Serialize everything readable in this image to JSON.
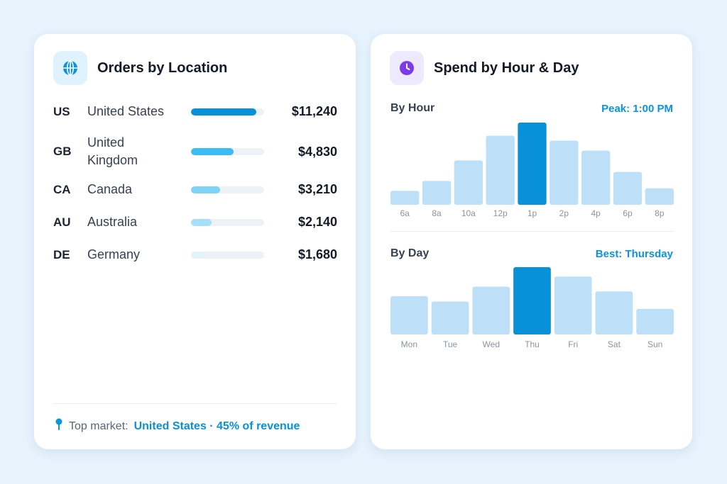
{
  "location_card": {
    "title": "Orders by Location",
    "icon": "globe-icon",
    "rows": [
      {
        "code": "US",
        "name": "United States",
        "amount": "$11,240",
        "share": 0.89,
        "color": "#0891d8"
      },
      {
        "code": "GB",
        "name": "United Kingdom",
        "amount": "$4,830",
        "share": 0.58,
        "color": "#3bbcf2"
      },
      {
        "code": "CA",
        "name": "Canada",
        "amount": "$3,210",
        "share": 0.4,
        "color": "#7dd3f5"
      },
      {
        "code": "AU",
        "name": "Australia",
        "amount": "$2,140",
        "share": 0.28,
        "color": "#a5dffa"
      },
      {
        "code": "DE",
        "name": "Germany",
        "amount": "$1,680",
        "share": 0.18,
        "color": "#e2f3fc"
      }
    ],
    "footer": {
      "label": "Top market:",
      "highlight": "United States · 45% of revenue",
      "icon": "map-pin-icon"
    }
  },
  "spend_card": {
    "title": "Spend by Hour & Day",
    "icon": "clock-icon",
    "by_hour": {
      "title": "By Hour",
      "note": "Peak: 1:00 PM"
    },
    "by_day": {
      "title": "By Day",
      "note": "Best: Thursday"
    }
  },
  "colors": {
    "accent": "#0891d8",
    "bar_light": "#bde0f8",
    "bar_peak": "#0891d8"
  },
  "chart_data": [
    {
      "type": "bar",
      "title": "By Hour",
      "categories": [
        "6a",
        "8a",
        "10a",
        "12p",
        "1p",
        "2p",
        "4p",
        "6p",
        "8p"
      ],
      "values": [
        17,
        29,
        54,
        84,
        100,
        78,
        66,
        40,
        20
      ],
      "highlight": "1p"
    },
    {
      "type": "bar",
      "title": "By Day",
      "categories": [
        "Mon",
        "Tue",
        "Wed",
        "Thu",
        "Fri",
        "Sat",
        "Sun"
      ],
      "values": [
        57,
        49,
        71,
        100,
        86,
        64,
        38
      ],
      "highlight": "Thu"
    }
  ]
}
